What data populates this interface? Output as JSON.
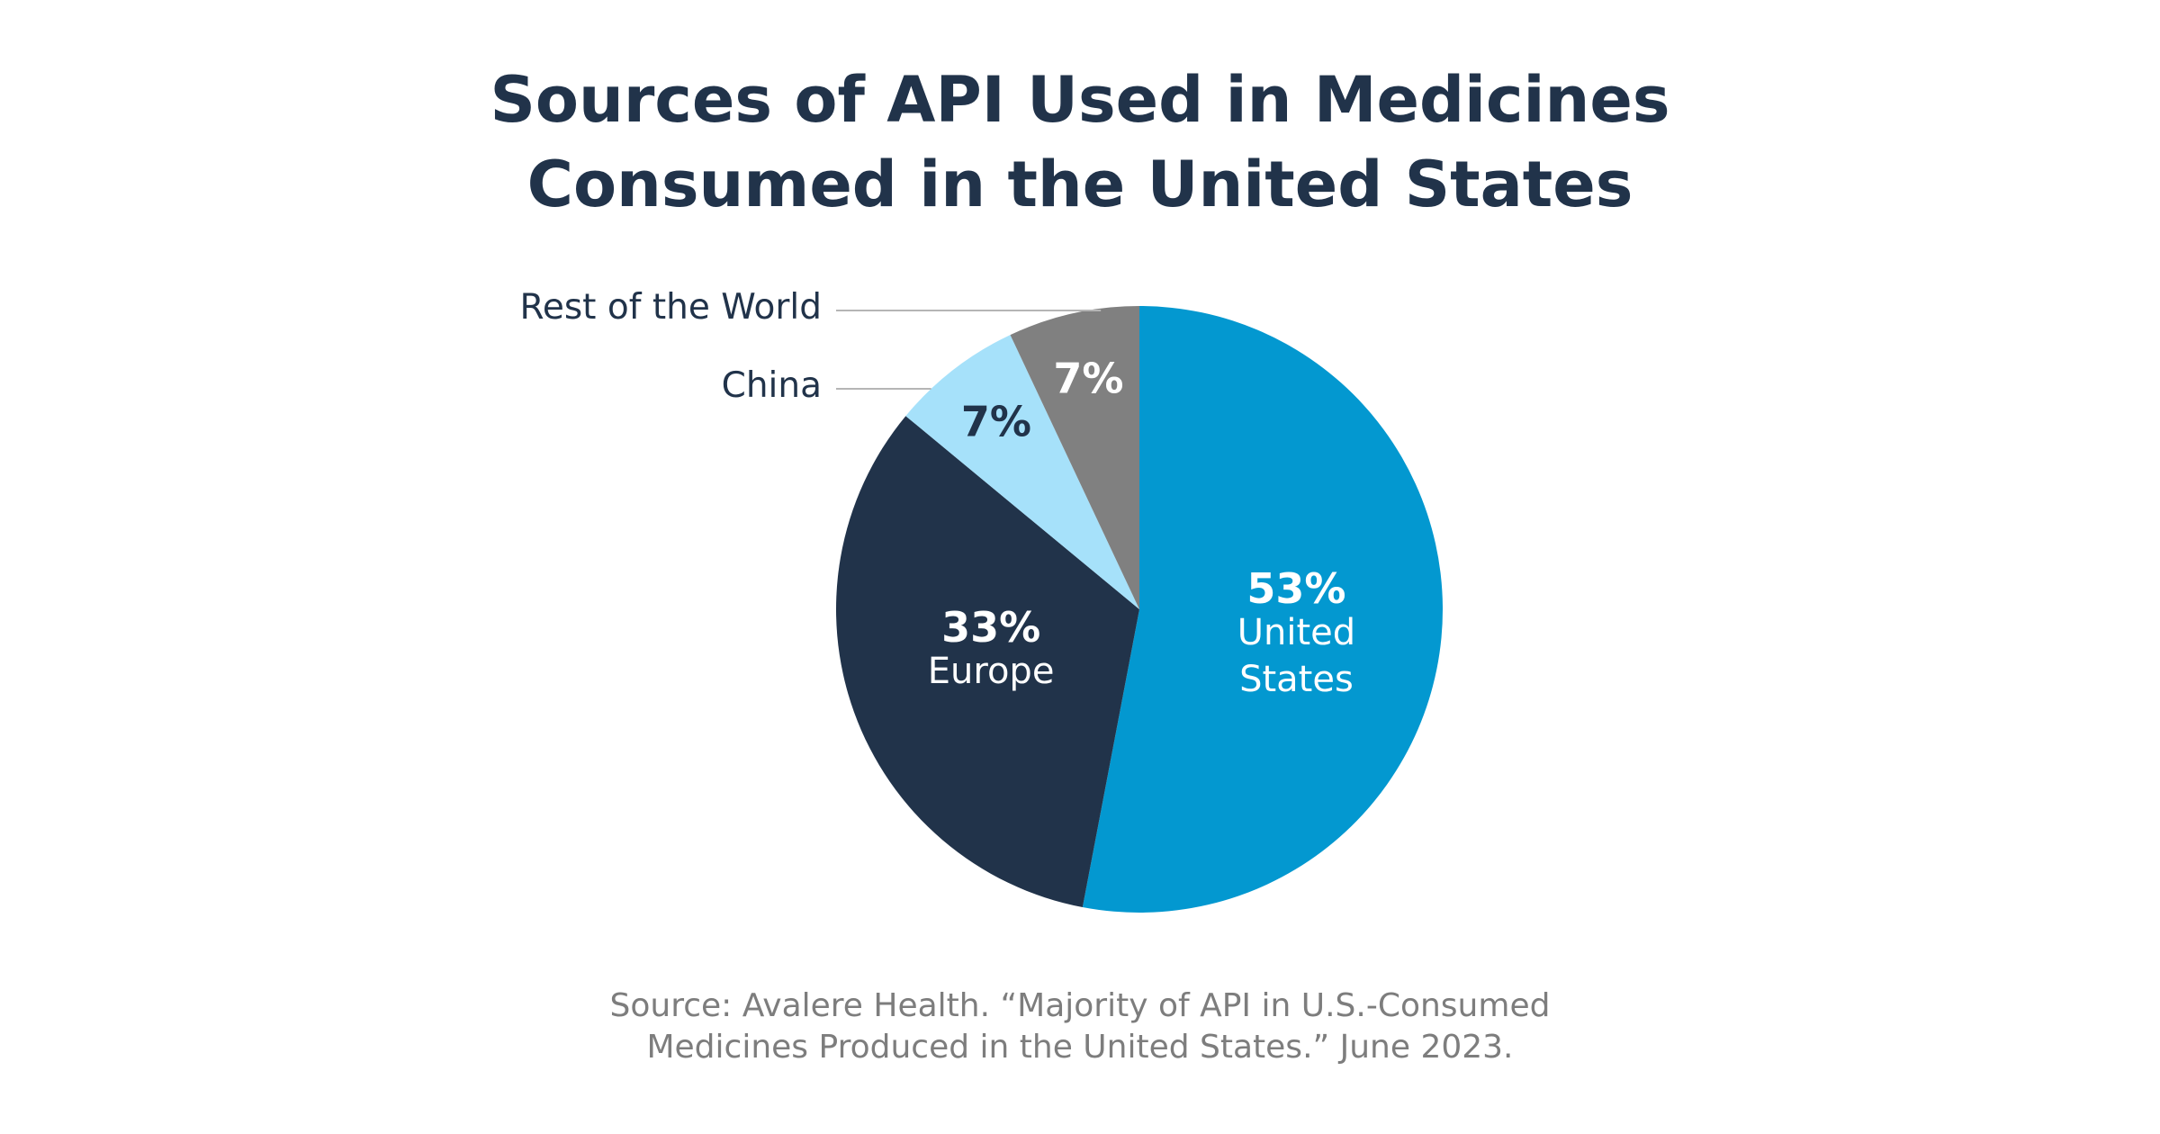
{
  "chart_data": {
    "type": "pie",
    "title": [
      "Sources of API Used in Medicines",
      "Consumed in the United States"
    ],
    "categories": [
      "United States",
      "Europe",
      "China",
      "Rest of the World"
    ],
    "values": [
      53,
      33,
      7,
      7
    ],
    "value_labels": [
      "53%",
      "33%",
      "7%",
      "7%"
    ],
    "colors": [
      "#0398d0",
      "#21334a",
      "#a6e1fa",
      "#808080"
    ],
    "source": [
      "Source: Avalere Health. “Majority of API in U.S.-Consumed",
      "Medicines Produced in the United States.” June 2023."
    ]
  }
}
